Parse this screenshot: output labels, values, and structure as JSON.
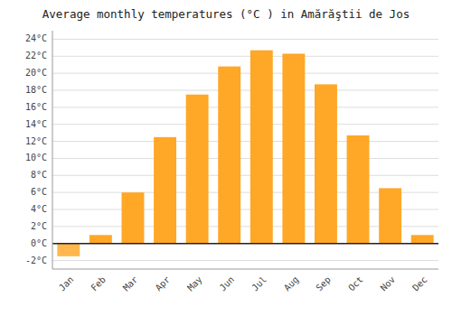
{
  "chart_data": {
    "type": "bar",
    "title": "Average monthly temperatures (°C ) in Amărăştii de Jos",
    "categories": [
      "Jan",
      "Feb",
      "Mar",
      "Apr",
      "May",
      "Jun",
      "Jul",
      "Aug",
      "Sep",
      "Oct",
      "Nov",
      "Dec"
    ],
    "values": [
      -1.5,
      1.0,
      6.0,
      12.5,
      17.5,
      20.8,
      22.7,
      22.3,
      18.7,
      12.7,
      6.5,
      1.0
    ],
    "colors": [
      "#FFB74D",
      "#FFA726",
      "#FFA726",
      "#FFA726",
      "#FFA726",
      "#FFA726",
      "#FFA726",
      "#FFA726",
      "#FFA726",
      "#FFA726",
      "#FFA726",
      "#FFA726"
    ],
    "ylim": [
      -3,
      25
    ],
    "yticks": [
      {
        "value": -2,
        "label": "-2°C"
      },
      {
        "value": 0,
        "label": "0°C"
      },
      {
        "value": 2,
        "label": "2°C"
      },
      {
        "value": 4,
        "label": "4°C"
      },
      {
        "value": 6,
        "label": "6°C"
      },
      {
        "value": 8,
        "label": "8°C"
      },
      {
        "value": 10,
        "label": "10°C"
      },
      {
        "value": 12,
        "label": "12°C"
      },
      {
        "value": 14,
        "label": "14°C"
      },
      {
        "value": 16,
        "label": "16°C"
      },
      {
        "value": 18,
        "label": "18°C"
      },
      {
        "value": 20,
        "label": "20°C"
      },
      {
        "value": 22,
        "label": "22°C"
      },
      {
        "value": 24,
        "label": "24°C"
      }
    ],
    "grid": true
  }
}
